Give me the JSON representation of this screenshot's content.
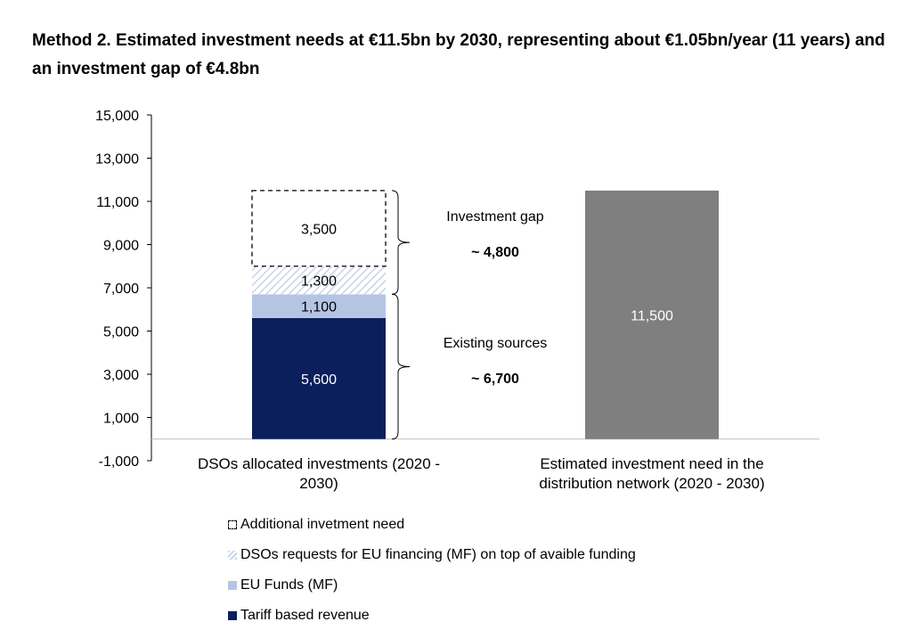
{
  "title": "Method 2. Estimated investment needs at €11.5bn by 2030, representing about €1.05bn/year (11 years) and an investment gap of €4.8bn",
  "colors": {
    "tariff": "#0a1f5c",
    "eu_funds": "#b4c5e4",
    "dso_requests_hatch": "#c8d4e8",
    "additional": "#ffffff",
    "estimated": "#7f7f7f"
  },
  "chart_data": {
    "type": "bar",
    "stacked": true,
    "categories": [
      "DSOs allocated investments (2020 - 2030)",
      "Estimated investment need in the distribution network (2020 - 2030)"
    ],
    "category_lines": [
      [
        "DSOs allocated investments (2020 -",
        "2030)"
      ],
      [
        "Estimated investment need in the",
        "distribution network (2020 - 2030)"
      ]
    ],
    "series": [
      {
        "name": "Tariff based revenue",
        "values": [
          5600,
          null
        ],
        "labels": [
          "5,600",
          ""
        ]
      },
      {
        "name": "EU Funds (MF)",
        "values": [
          1100,
          null
        ],
        "labels": [
          "1,100",
          ""
        ]
      },
      {
        "name": "DSOs requests for EU financing (MF) on top of avaible funding",
        "values": [
          1300,
          null
        ],
        "labels": [
          "1,300",
          ""
        ]
      },
      {
        "name": "Additional invetment need",
        "values": [
          3500,
          null
        ],
        "labels": [
          "3,500",
          ""
        ]
      },
      {
        "name": "",
        "values": [
          null,
          11500
        ],
        "labels": [
          "",
          "11,500"
        ]
      }
    ],
    "ylim": [
      -1000,
      15000
    ],
    "yticks": [
      15000,
      13000,
      11000,
      9000,
      7000,
      5000,
      3000,
      1000,
      -1000
    ],
    "ytick_labels": [
      "15,000",
      "13,000",
      "11,000",
      "9,000",
      "7,000",
      "5,000",
      "3,000",
      "1,000",
      "-1,000"
    ],
    "annotations": [
      {
        "label": "Investment gap",
        "value": "~ 4,800",
        "from": 6700,
        "to": 11500
      },
      {
        "label": "Existing sources",
        "value": "~ 6,700",
        "from": 0,
        "to": 6700
      }
    ],
    "legend_position": "bottom",
    "grid": false
  },
  "legend": [
    {
      "label": "Additional invetment need",
      "style": "dashed"
    },
    {
      "label": "DSOs requests for EU financing (MF) on top of avaible funding",
      "style": "hatch"
    },
    {
      "label": "EU Funds (MF)",
      "style": "light"
    },
    {
      "label": "Tariff based revenue",
      "style": "dark"
    }
  ]
}
